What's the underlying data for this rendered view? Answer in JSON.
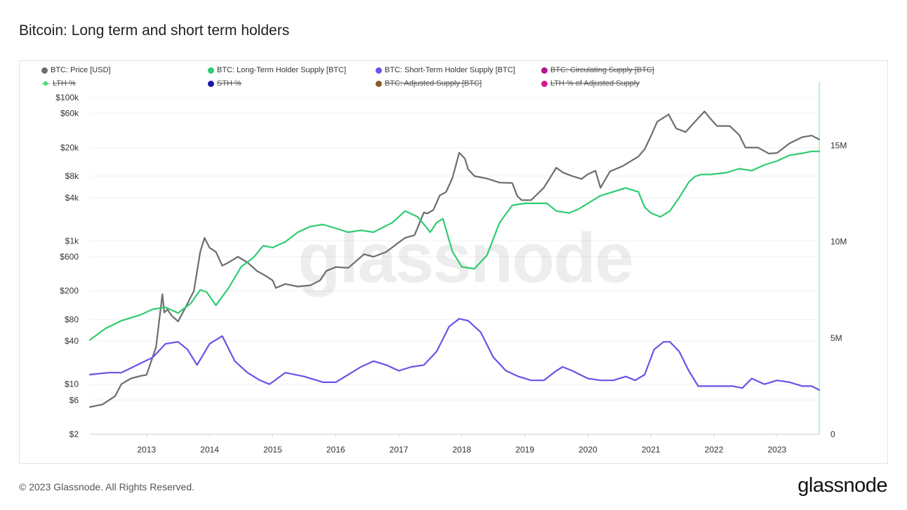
{
  "page": {
    "title": "Bitcoin: Long term and short term holders",
    "copyright": "© 2023 Glassnode. All Rights Reserved.",
    "logo_text": "glassnode",
    "watermark": "glassnode"
  },
  "legend": [
    {
      "label": "BTC: Price [USD]",
      "color": "#6d6d6d",
      "marker": "dot",
      "active": true
    },
    {
      "label": "BTC: Long-Term Holder Supply [BTC]",
      "color": "#2ecc71",
      "marker": "dot",
      "active": true
    },
    {
      "label": "BTC: Short-Term Holder Supply [BTC]",
      "color": "#6a52e8",
      "marker": "dot",
      "active": true
    },
    {
      "label": "BTC: Circulating Supply [BTC]",
      "color": "#b0158f",
      "marker": "dot",
      "active": false
    },
    {
      "label": "LTH %",
      "color": "#48d672",
      "marker": "line",
      "active": false
    },
    {
      "label": "STH %",
      "color": "#1c1aa8",
      "marker": "dot",
      "active": false
    },
    {
      "label": "BTC: Adjusted Supply [BTC]",
      "color": "#8a5a24",
      "marker": "dot",
      "active": false
    },
    {
      "label": "LTH % of Adjusted Supply",
      "color": "#d31b8f",
      "marker": "dot",
      "active": false
    }
  ],
  "chart_data": {
    "type": "line",
    "title": "Bitcoin: Long term and short term holders",
    "x_axis": {
      "type": "time",
      "range": [
        2012.1,
        2023.67
      ],
      "ticks": [
        "2013",
        "2014",
        "2015",
        "2016",
        "2017",
        "2018",
        "2019",
        "2020",
        "2021",
        "2022",
        "2023"
      ]
    },
    "y_axis_left": {
      "scale": "log",
      "range": [
        2,
        100000
      ],
      "tick_values": [
        2,
        6,
        10,
        40,
        80,
        200,
        600,
        1000,
        4000,
        8000,
        20000,
        60000,
        100000
      ],
      "tick_labels": [
        "$2",
        "$6",
        "$10",
        "$40",
        "$80",
        "$200",
        "$600",
        "$1k",
        "$4k",
        "$8k",
        "$20k",
        "$60k",
        "$100k"
      ]
    },
    "y_axis_right": {
      "scale": "linear",
      "range": [
        0,
        17500000
      ],
      "tick_values": [
        0,
        5000000,
        10000000,
        15000000
      ],
      "tick_labels": [
        "0",
        "5M",
        "10M",
        "15M"
      ]
    },
    "grid": true,
    "legend_position": "top",
    "series": [
      {
        "name": "BTC: Price [USD]",
        "color": "#6d6d6d",
        "axis": "left",
        "x": [
          2012.1,
          2012.3,
          2012.5,
          2012.6,
          2012.75,
          2012.9,
          2013.0,
          2013.15,
          2013.25,
          2013.28,
          2013.33,
          2013.4,
          2013.5,
          2013.6,
          2013.75,
          2013.85,
          2013.92,
          2014.0,
          2014.1,
          2014.2,
          2014.3,
          2014.45,
          2014.6,
          2014.75,
          2014.9,
          2015.0,
          2015.05,
          2015.2,
          2015.4,
          2015.6,
          2015.75,
          2015.85,
          2016.0,
          2016.2,
          2016.45,
          2016.6,
          2016.8,
          2017.0,
          2017.1,
          2017.25,
          2017.4,
          2017.45,
          2017.55,
          2017.65,
          2017.75,
          2017.85,
          2017.96,
          2018.05,
          2018.1,
          2018.2,
          2018.4,
          2018.6,
          2018.8,
          2018.88,
          2018.95,
          2019.1,
          2019.3,
          2019.5,
          2019.6,
          2019.75,
          2019.9,
          2020.0,
          2020.12,
          2020.2,
          2020.35,
          2020.55,
          2020.8,
          2020.9,
          2021.0,
          2021.1,
          2021.28,
          2021.4,
          2021.55,
          2021.7,
          2021.85,
          2021.95,
          2022.05,
          2022.25,
          2022.4,
          2022.5,
          2022.7,
          2022.87,
          2023.0,
          2023.2,
          2023.4,
          2023.55,
          2023.67
        ],
        "y": [
          4.8,
          5.2,
          6.8,
          10,
          12,
          13,
          13.5,
          33,
          180,
          100,
          110,
          90,
          75,
          110,
          200,
          700,
          1100,
          800,
          700,
          450,
          500,
          600,
          500,
          380,
          320,
          280,
          220,
          250,
          230,
          240,
          280,
          380,
          430,
          420,
          650,
          600,
          700,
          950,
          1100,
          1200,
          2500,
          2400,
          2700,
          4300,
          4800,
          7500,
          17000,
          14000,
          10000,
          8000,
          7400,
          6500,
          6400,
          4200,
          3700,
          3700,
          5500,
          10500,
          9000,
          8000,
          7300,
          8500,
          9500,
          5500,
          9300,
          11000,
          15000,
          19000,
          29000,
          46000,
          58000,
          37000,
          33000,
          46000,
          64000,
          50000,
          40000,
          40000,
          30000,
          20000,
          20000,
          16500,
          16800,
          23000,
          28000,
          29500,
          26000
        ]
      },
      {
        "name": "BTC: Long-Term Holder Supply [BTC]",
        "color": "#2ecc71",
        "axis": "right",
        "x": [
          2012.1,
          2012.35,
          2012.6,
          2012.9,
          2013.1,
          2013.3,
          2013.5,
          2013.7,
          2013.85,
          2013.95,
          2014.1,
          2014.3,
          2014.5,
          2014.7,
          2014.85,
          2015.0,
          2015.2,
          2015.4,
          2015.6,
          2015.8,
          2016.0,
          2016.2,
          2016.4,
          2016.6,
          2016.9,
          2017.1,
          2017.3,
          2017.5,
          2017.6,
          2017.7,
          2017.85,
          2018.0,
          2018.2,
          2018.4,
          2018.6,
          2018.8,
          2019.0,
          2019.2,
          2019.35,
          2019.5,
          2019.7,
          2019.85,
          2020.0,
          2020.2,
          2020.4,
          2020.6,
          2020.8,
          2020.9,
          2021.0,
          2021.15,
          2021.3,
          2021.45,
          2021.6,
          2021.7,
          2021.8,
          2021.95,
          2022.2,
          2022.4,
          2022.6,
          2022.8,
          2023.0,
          2023.2,
          2023.4,
          2023.55,
          2023.67
        ],
        "y": [
          4900000,
          5500000,
          5900000,
          6200000,
          6500000,
          6600000,
          6300000,
          6800000,
          7500000,
          7400000,
          6700000,
          7600000,
          8700000,
          9200000,
          9800000,
          9700000,
          10000000,
          10500000,
          10800000,
          10900000,
          10700000,
          10500000,
          10600000,
          10500000,
          11000000,
          11600000,
          11300000,
          10500000,
          11000000,
          11200000,
          9500000,
          8700000,
          8600000,
          9300000,
          11000000,
          11900000,
          12000000,
          12000000,
          12000000,
          11600000,
          11500000,
          11700000,
          12000000,
          12400000,
          12600000,
          12800000,
          12600000,
          11800000,
          11500000,
          11300000,
          11600000,
          12300000,
          13100000,
          13400000,
          13500000,
          13500000,
          13600000,
          13800000,
          13700000,
          14000000,
          14200000,
          14500000,
          14600000,
          14700000,
          14700000
        ]
      },
      {
        "name": "BTC: Short-Term Holder Supply [BTC]",
        "color": "#6a52e8",
        "axis": "right",
        "x": [
          2012.1,
          2012.4,
          2012.6,
          2012.85,
          2013.1,
          2013.3,
          2013.5,
          2013.65,
          2013.8,
          2014.0,
          2014.2,
          2014.4,
          2014.6,
          2014.8,
          2014.95,
          2015.2,
          2015.5,
          2015.8,
          2016.0,
          2016.2,
          2016.4,
          2016.6,
          2016.8,
          2017.0,
          2017.2,
          2017.4,
          2017.6,
          2017.8,
          2017.96,
          2018.1,
          2018.3,
          2018.5,
          2018.7,
          2018.9,
          2019.1,
          2019.3,
          2019.5,
          2019.6,
          2019.75,
          2020.0,
          2020.2,
          2020.4,
          2020.6,
          2020.75,
          2020.9,
          2021.05,
          2021.2,
          2021.3,
          2021.45,
          2021.6,
          2021.75,
          2021.9,
          2022.1,
          2022.3,
          2022.45,
          2022.6,
          2022.8,
          2023.0,
          2023.2,
          2023.4,
          2023.55,
          2023.67
        ],
        "y": [
          3100000,
          3200000,
          3200000,
          3600000,
          4000000,
          4700000,
          4800000,
          4400000,
          3600000,
          4700000,
          5100000,
          3800000,
          3200000,
          2800000,
          2600000,
          3200000,
          3000000,
          2700000,
          2700000,
          3100000,
          3500000,
          3800000,
          3600000,
          3300000,
          3500000,
          3600000,
          4300000,
          5600000,
          6000000,
          5900000,
          5300000,
          4000000,
          3300000,
          3000000,
          2800000,
          2800000,
          3300000,
          3500000,
          3300000,
          2900000,
          2800000,
          2800000,
          3000000,
          2800000,
          3100000,
          4400000,
          4800000,
          4800000,
          4300000,
          3300000,
          2500000,
          2500000,
          2500000,
          2500000,
          2400000,
          2900000,
          2600000,
          2800000,
          2700000,
          2500000,
          2500000,
          2300000
        ]
      }
    ]
  }
}
